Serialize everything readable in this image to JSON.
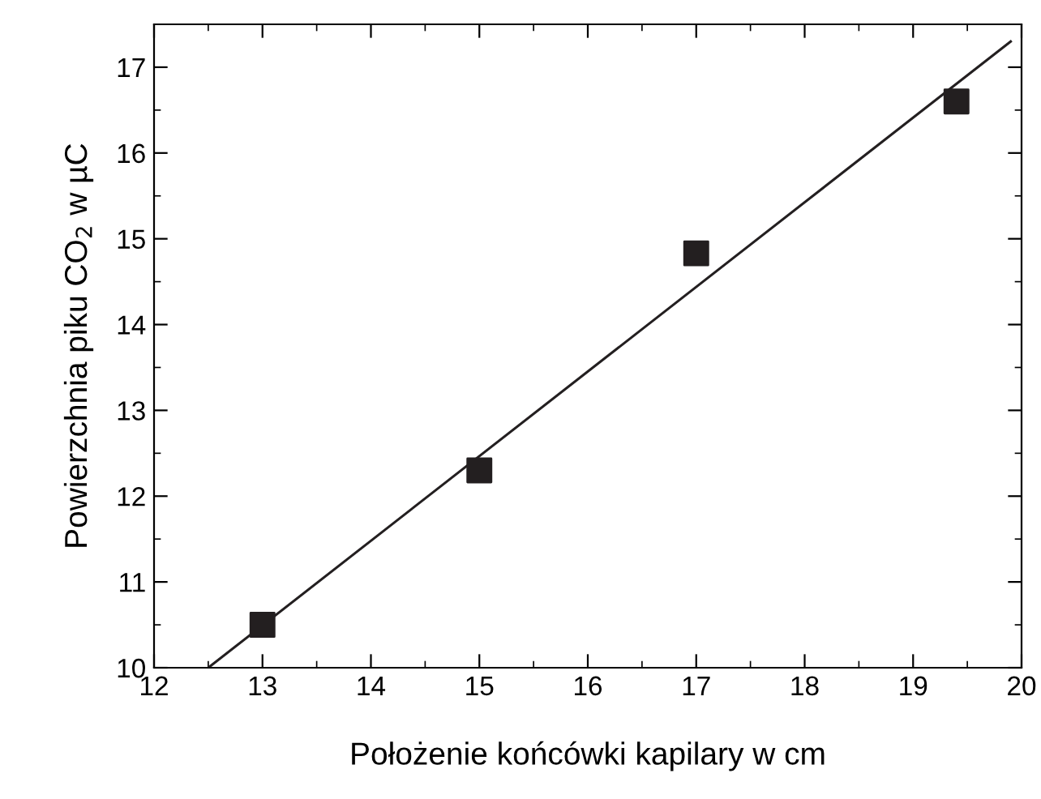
{
  "chart_data": {
    "type": "scatter",
    "xlabel": "Położenie końcówki kapilary w cm",
    "ylabel": "Powierzchnia piku CO$_{2}$ w µC",
    "x": [
      13,
      15,
      17,
      19.4
    ],
    "series": [
      {
        "color": "#231f20",
        "marker": "square",
        "values": [
          10.5,
          12.3,
          14.83,
          16.6
        ]
      },
      {
        "type": "line",
        "color": "#231f20",
        "marker": "none",
        "x": [
          12.5,
          19.9
        ],
        "values": [
          10.0,
          17.3
        ]
      }
    ],
    "xlim": [
      12,
      20
    ],
    "ylim": [
      10,
      17.5
    ],
    "xticks": [
      12,
      13,
      14,
      15,
      16,
      17,
      18,
      19,
      20
    ],
    "yticks": [
      10,
      11,
      12,
      13,
      14,
      15,
      16,
      17
    ],
    "grid": false,
    "legend": false
  }
}
